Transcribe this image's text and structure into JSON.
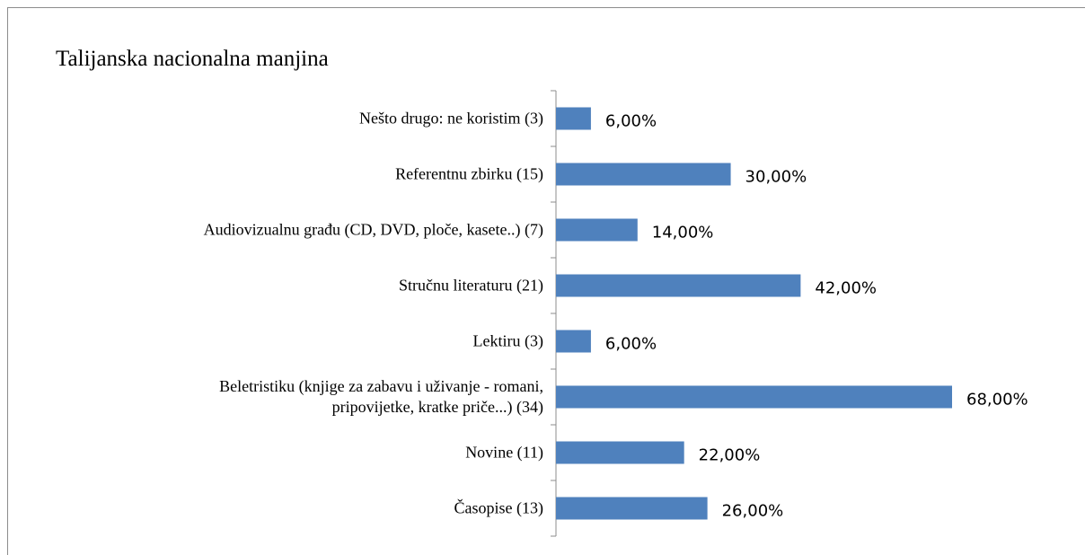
{
  "chart_data": {
    "type": "bar",
    "orientation": "horizontal",
    "title": "Talijanska nacionalna manjina",
    "categories": [
      "Nešto drugo: ne koristim (3)",
      "Referentnu zbirku  (15)",
      "Audiovizualnu građu (CD, DVD, ploče, kasete..) (7)",
      "Stručnu literaturu (21)",
      "Lektiru (3)",
      "Beletristiku (knjige za zabavu i uživanje - romani,\npripovijetke, kratke priče...) (34)",
      "Novine (11)",
      "Časopise (13)"
    ],
    "values": [
      6,
      30,
      14,
      42,
      6,
      68,
      22,
      26
    ],
    "value_labels": [
      "6,00%",
      "30,00%",
      "14,00%",
      "42,00%",
      "6,00%",
      "68,00%",
      "22,00%",
      "26,00%"
    ],
    "color": "#4f81bd"
  }
}
